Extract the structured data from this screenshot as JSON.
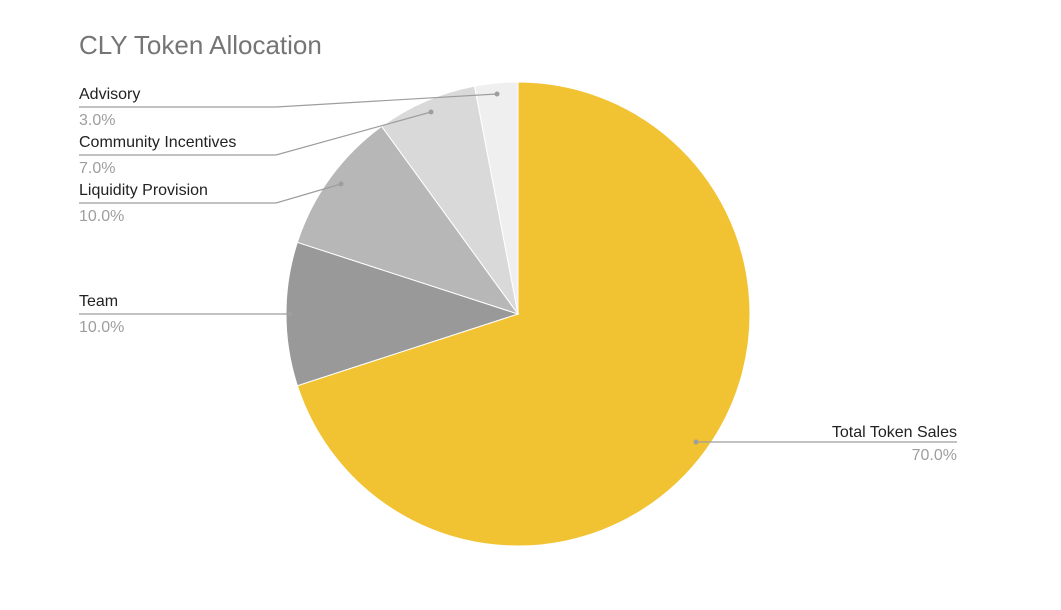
{
  "chart_data": {
    "type": "pie",
    "title": "CLY Token Allocation",
    "start_angle_deg": 0,
    "direction": "clockwise",
    "legend": "labels with leader lines",
    "slices": [
      {
        "label": "Total Token Sales",
        "value": 70.0,
        "pct_label": "70.0%",
        "color": "#f1c232"
      },
      {
        "label": "Team",
        "value": 10.0,
        "pct_label": "10.0%",
        "color": "#999999"
      },
      {
        "label": "Liquidity Provision",
        "value": 10.0,
        "pct_label": "10.0%",
        "color": "#b7b7b7"
      },
      {
        "label": "Community Incentives",
        "value": 7.0,
        "pct_label": "7.0%",
        "color": "#d9d9d9"
      },
      {
        "label": "Advisory",
        "value": 3.0,
        "pct_label": "3.0%",
        "color": "#efefef"
      }
    ]
  }
}
